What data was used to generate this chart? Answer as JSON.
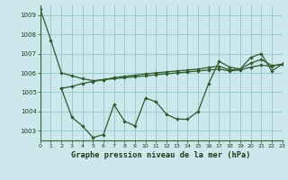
{
  "title": "Graphe pression niveau de la mer (hPa)",
  "bg_color": "#cce8ec",
  "grid_color": "#99cccc",
  "line_color": "#2d5a2d",
  "xlim": [
    0,
    23
  ],
  "ylim": [
    1002.5,
    1009.5
  ],
  "yticks": [
    1003,
    1004,
    1005,
    1006,
    1007,
    1008,
    1009
  ],
  "xticks": [
    0,
    1,
    2,
    3,
    4,
    5,
    6,
    7,
    8,
    9,
    10,
    11,
    12,
    13,
    14,
    15,
    16,
    17,
    18,
    19,
    20,
    21,
    22,
    23
  ],
  "s1": [
    1009.3,
    1007.7,
    1006.0,
    1005.85,
    1005.7,
    1005.6,
    1005.65,
    1005.7,
    1005.75,
    1005.8,
    1005.85,
    1005.9,
    1005.95,
    1006.0,
    1006.05,
    1006.1,
    1006.15,
    1006.2,
    1006.1,
    1006.15,
    1006.3,
    1006.4,
    1006.35,
    1006.45
  ],
  "s2": [
    null,
    null,
    1005.2,
    1005.3,
    1005.45,
    1005.55,
    1005.65,
    1005.75,
    1005.82,
    1005.88,
    1005.95,
    1006.0,
    1006.05,
    1006.1,
    1006.15,
    1006.2,
    1006.28,
    1006.35,
    1006.15,
    1006.2,
    1006.5,
    1006.7,
    1006.38,
    1006.45
  ],
  "s3": [
    null,
    null,
    1005.2,
    1003.7,
    1003.25,
    1002.65,
    1002.8,
    1004.35,
    1003.5,
    1003.25,
    1004.7,
    1004.5,
    1003.85,
    1003.6,
    1003.6,
    1004.0,
    1005.45,
    1006.6,
    1006.3,
    1006.2,
    1006.8,
    1007.0,
    1006.1,
    1006.45
  ]
}
